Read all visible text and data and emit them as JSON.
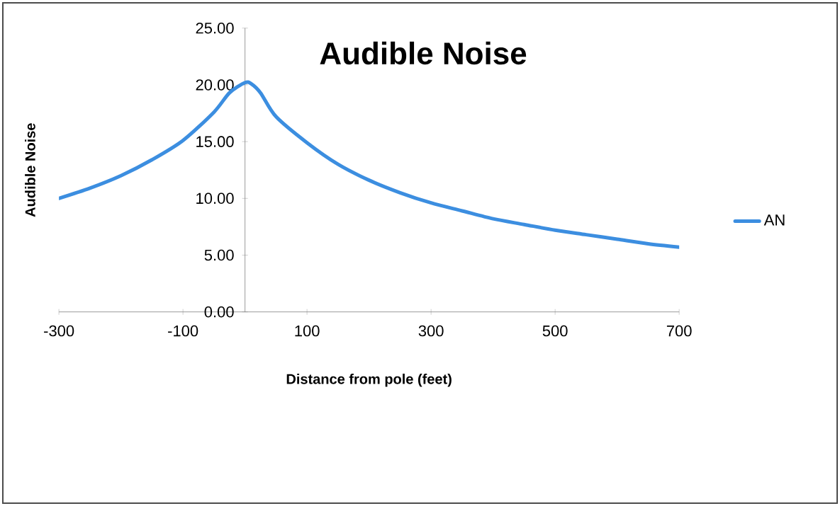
{
  "chart_data": {
    "type": "line",
    "title": "Audible Noise",
    "xlabel": "Distance from pole (feet)",
    "ylabel": "Audible Noise",
    "x": [
      -300,
      -250,
      -200,
      -150,
      -100,
      -50,
      -25,
      0,
      10,
      25,
      50,
      100,
      150,
      200,
      250,
      300,
      350,
      400,
      450,
      500,
      550,
      600,
      650,
      700
    ],
    "series": [
      {
        "name": "AN",
        "color": "#3c8ee0",
        "values": [
          10.0,
          10.9,
          12.0,
          13.4,
          15.1,
          17.6,
          19.3,
          20.2,
          20.1,
          19.3,
          17.2,
          14.9,
          13.0,
          11.6,
          10.5,
          9.6,
          8.9,
          8.2,
          7.7,
          7.2,
          6.8,
          6.4,
          6.0,
          5.7
        ]
      }
    ],
    "xlim": [
      -300,
      700
    ],
    "xticks": [
      -300,
      -100,
      100,
      300,
      500,
      700
    ],
    "ylim": [
      0,
      25
    ],
    "yticks": [
      {
        "value": 0,
        "label": "0.00"
      },
      {
        "value": 5,
        "label": "5.00"
      },
      {
        "value": 10,
        "label": "10.00"
      },
      {
        "value": 15,
        "label": "15.00"
      },
      {
        "value": 20,
        "label": "20.00"
      },
      {
        "value": 25,
        "label": "25.00"
      }
    ],
    "grid": false,
    "legend": "right",
    "marker": "none",
    "line_style": "solid"
  }
}
